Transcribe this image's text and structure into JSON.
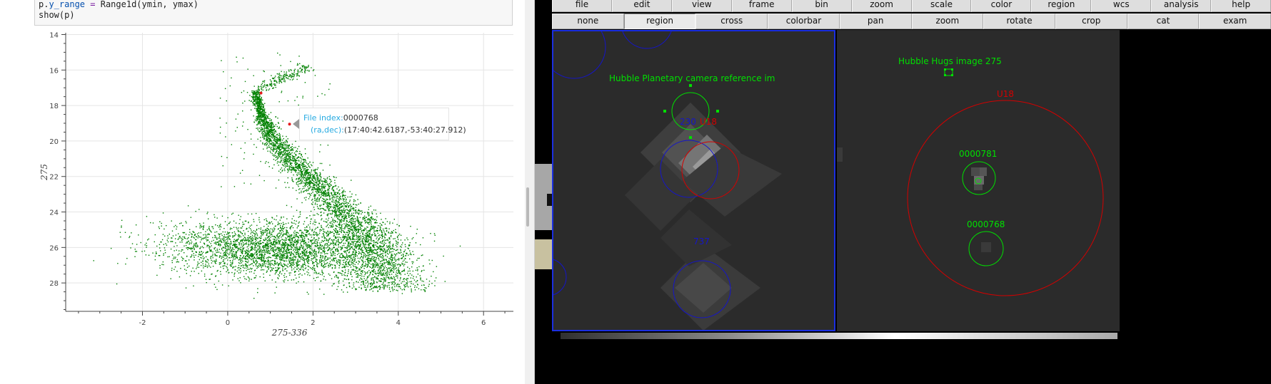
{
  "notebook": {
    "code_lines": [
      {
        "prefix": "p.",
        "attr": "y_range",
        "op": " = ",
        "rest": "Range1d(ymin, ymax)"
      },
      {
        "prefix": "",
        "attr": "",
        "op": "",
        "rest": "show(p)"
      }
    ]
  },
  "tooltip": {
    "file_label": "File index:",
    "file_value": "0000768",
    "coord_label": "(ra,dec):",
    "coord_value": "(17:40:42.6187,-53:40:27.912)"
  },
  "chart_data": {
    "type": "scatter",
    "title": "",
    "xlabel": "275-336",
    "ylabel": "275",
    "xlim": [
      -3.8,
      6.7
    ],
    "ylim": [
      29.6,
      13.9
    ],
    "y_inverted": true,
    "x_ticks": [
      -2,
      0,
      2,
      4,
      6
    ],
    "y_ticks": [
      14,
      16,
      18,
      20,
      22,
      24,
      26,
      28
    ],
    "grid": true,
    "point_color": "#008000",
    "highlight_color": "#e31a1c",
    "highlight_points": [
      {
        "x": 1.45,
        "y": 19.05
      },
      {
        "x": 0.78,
        "y": 17.3
      }
    ],
    "ridge": [
      {
        "x": 0.65,
        "y": 17.2
      },
      {
        "x": 0.8,
        "y": 18.6
      },
      {
        "x": 1.05,
        "y": 19.8
      },
      {
        "x": 1.45,
        "y": 21.0
      },
      {
        "x": 1.9,
        "y": 22.1
      },
      {
        "x": 2.35,
        "y": 23.1
      },
      {
        "x": 2.8,
        "y": 24.2
      },
      {
        "x": 3.15,
        "y": 25.2
      },
      {
        "x": 3.4,
        "y": 26.2
      },
      {
        "x": 3.6,
        "y": 27.3
      },
      {
        "x": 3.7,
        "y": 28.4
      }
    ],
    "clusters": [
      {
        "x": 1.5,
        "y": 26.2,
        "count": 2200
      },
      {
        "x": 0.4,
        "y": 25.9,
        "count": 1000
      }
    ]
  },
  "ds9": {
    "menu": [
      "file",
      "edit",
      "view",
      "frame",
      "bin",
      "zoom",
      "scale",
      "color",
      "region",
      "wcs",
      "analysis",
      "help"
    ],
    "buttons": [
      "none",
      "region",
      "cross",
      "colorbar",
      "pan",
      "zoom",
      "rotate",
      "crop",
      "cat",
      "exam"
    ],
    "active_button": 1,
    "frame1": {
      "title": "Hubble Planetary camera reference im",
      "label_blue_top": "230",
      "label_red_top": "U18",
      "label_blue_bottom": "737"
    },
    "frame2": {
      "title": "Hubble Hugs image 275",
      "label_red": "U18",
      "label_1": "0000781",
      "label_2": "0000768"
    },
    "colors": {
      "region_green": "#00e000",
      "region_red": "#d40000",
      "region_blue": "#1515c8",
      "frame_bg": "#2b2b2b"
    }
  }
}
